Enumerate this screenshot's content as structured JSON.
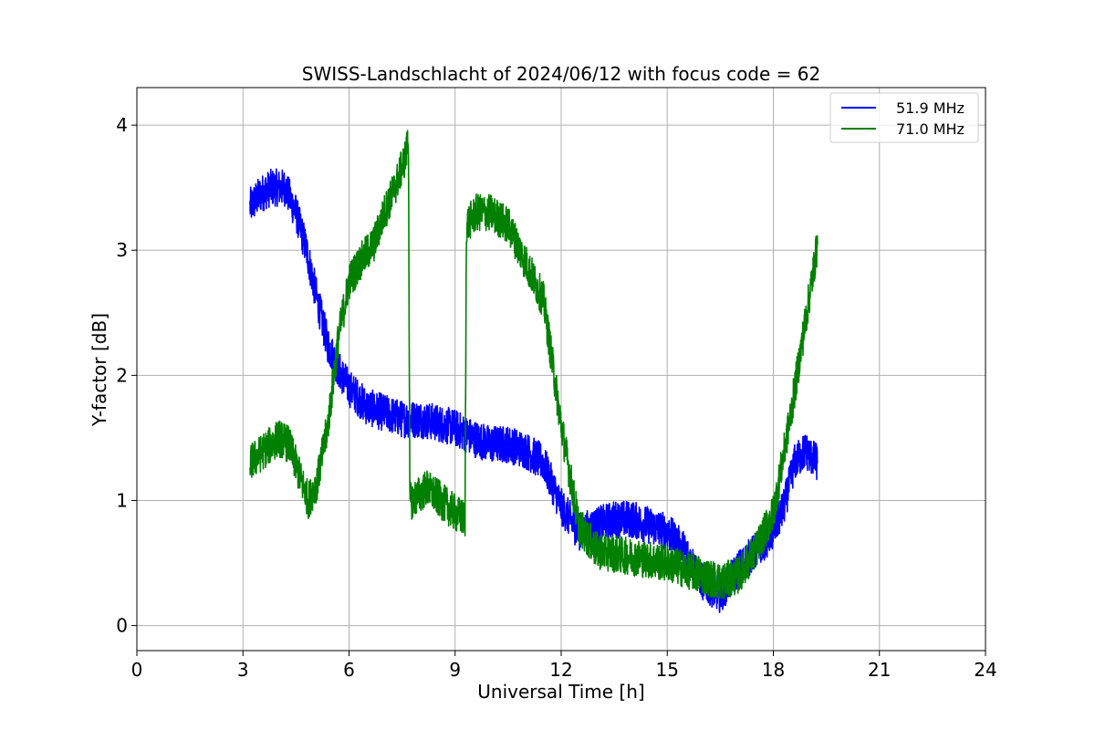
{
  "chart_data": {
    "type": "line",
    "title": "SWISS-Landschlacht of 2024/06/12 with focus code = 62",
    "xlabel": "Universal Time [h]",
    "ylabel": "Y-factor [dB]",
    "xlim": [
      0,
      24
    ],
    "ylim": [
      -0.2,
      4.3
    ],
    "xticks": [
      0,
      3,
      6,
      9,
      12,
      15,
      18,
      21,
      24
    ],
    "yticks": [
      0,
      1,
      2,
      3,
      4
    ],
    "grid": true,
    "legend_position": "top-right",
    "series": [
      {
        "name": "51.9 MHz",
        "color": "#0000ff",
        "noise": 0.15,
        "x": [
          3.2,
          3.5,
          3.8,
          4.2,
          4.5,
          4.8,
          5.1,
          5.4,
          5.7,
          6.0,
          6.5,
          7.0,
          7.5,
          8.0,
          8.5,
          9.0,
          9.5,
          10.0,
          10.5,
          11.0,
          11.5,
          12.0,
          12.5,
          13.0,
          13.5,
          14.0,
          14.5,
          15.0,
          15.5,
          16.0,
          16.5,
          17.0,
          17.5,
          18.0,
          18.3,
          18.6,
          18.9,
          19.25
        ],
        "y": [
          3.35,
          3.45,
          3.5,
          3.5,
          3.3,
          3.0,
          2.6,
          2.25,
          2.05,
          1.9,
          1.75,
          1.7,
          1.65,
          1.65,
          1.62,
          1.58,
          1.5,
          1.45,
          1.45,
          1.4,
          1.3,
          0.95,
          0.75,
          0.8,
          0.85,
          0.85,
          0.8,
          0.75,
          0.6,
          0.35,
          0.25,
          0.45,
          0.6,
          0.75,
          0.95,
          1.3,
          1.4,
          1.3
        ]
      },
      {
        "name": "71.0 MHz",
        "color": "#008000",
        "noise": 0.15,
        "x": [
          3.2,
          3.6,
          4.0,
          4.3,
          4.6,
          4.85,
          5.1,
          5.4,
          5.7,
          6.0,
          6.3,
          6.7,
          7.0,
          7.3,
          7.6,
          7.68,
          7.72,
          7.8,
          8.2,
          8.6,
          9.0,
          9.28,
          9.32,
          9.6,
          10.0,
          10.5,
          11.0,
          11.5,
          12.0,
          12.5,
          13.0,
          14.0,
          15.0,
          15.5,
          16.0,
          16.5,
          17.0,
          17.5,
          18.0,
          18.5,
          19.0,
          19.25
        ],
        "y": [
          1.3,
          1.4,
          1.5,
          1.45,
          1.2,
          1.0,
          1.15,
          1.6,
          2.3,
          2.75,
          2.9,
          3.05,
          3.3,
          3.5,
          3.75,
          3.9,
          1.0,
          1.0,
          1.1,
          1.0,
          0.9,
          0.85,
          3.2,
          3.3,
          3.3,
          3.2,
          2.9,
          2.6,
          1.6,
          0.8,
          0.6,
          0.55,
          0.5,
          0.45,
          0.4,
          0.35,
          0.4,
          0.6,
          0.9,
          1.7,
          2.6,
          3.05
        ]
      }
    ]
  }
}
